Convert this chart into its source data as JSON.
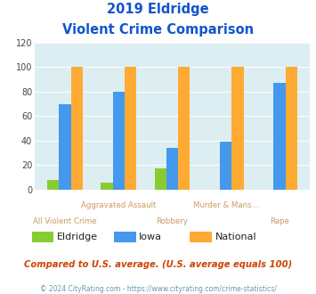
{
  "title_line1": "2019 Eldridge",
  "title_line2": "Violent Crime Comparison",
  "categories": [
    "All Violent Crime",
    "Aggravated Assault",
    "Robbery",
    "Murder & Mans...",
    "Rape"
  ],
  "series": {
    "Eldridge": [
      8,
      6,
      17,
      0,
      0
    ],
    "Iowa": [
      70,
      80,
      34,
      39,
      87
    ],
    "National": [
      100,
      100,
      100,
      100,
      100
    ]
  },
  "colors": {
    "Eldridge": "#88cc33",
    "Iowa": "#4499ee",
    "National": "#ffaa33"
  },
  "ylim": [
    0,
    120
  ],
  "yticks": [
    0,
    20,
    40,
    60,
    80,
    100,
    120
  ],
  "plot_bg_color": "#ddeef2",
  "title_color": "#1155cc",
  "x_label_top": [
    "",
    "Aggravated Assault",
    "",
    "Murder & Mans...",
    ""
  ],
  "x_label_bot": [
    "All Violent Crime",
    "",
    "Robbery",
    "",
    "Rape"
  ],
  "x_label_color": "#cc9966",
  "subtitle_note": "Compared to U.S. average. (U.S. average equals 100)",
  "subtitle_note_color": "#cc4400",
  "footer": "© 2024 CityRating.com - https://www.cityrating.com/crime-statistics/",
  "footer_color": "#6699aa"
}
